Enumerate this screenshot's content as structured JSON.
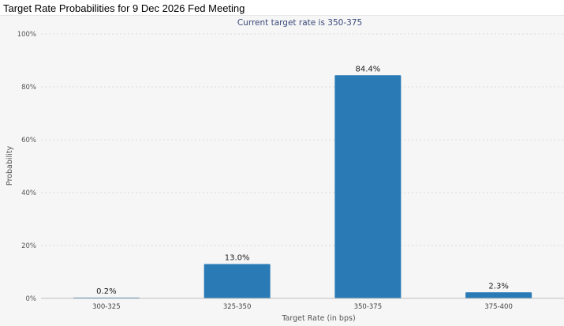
{
  "chart_data": {
    "type": "bar",
    "title": "Target Rate Probabilities for 9 Dec 2026 Fed Meeting",
    "subtitle": "Current target rate is 350-375",
    "xlabel": "Target Rate (in bps)",
    "ylabel": "Probability",
    "categories": [
      "300-325",
      "325-350",
      "350-375",
      "375-400"
    ],
    "values": [
      0.2,
      13.0,
      84.4,
      2.3
    ],
    "value_labels": [
      "0.2%",
      "13.0%",
      "84.4%",
      "2.3%"
    ],
    "ylim": [
      0,
      100
    ],
    "yticks": [
      0,
      20,
      40,
      60,
      80,
      100
    ],
    "ytick_labels": [
      "0%",
      "20%",
      "40%",
      "60%",
      "80%",
      "100%"
    ],
    "grid": true,
    "bar_color": "#2a7ab5"
  }
}
